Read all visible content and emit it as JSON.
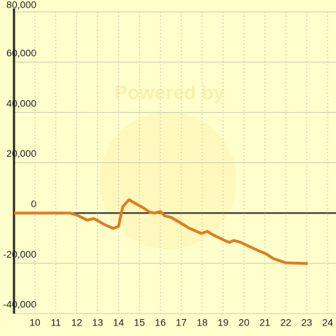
{
  "chart_data": {
    "type": "line",
    "watermark": "Powered by",
    "x": [
      9,
      11.68,
      12.0,
      12.5,
      12.8,
      13.0,
      13.35,
      13.75,
      14.0,
      14.2,
      14.5,
      14.85,
      15.2,
      15.5,
      15.75,
      16.0,
      16.2,
      16.5,
      16.85,
      17.35,
      17.95,
      18.25,
      18.5,
      19.0,
      19.3,
      19.5,
      19.85,
      20.2,
      20.7,
      21.05,
      21.4,
      22.0,
      23.05
    ],
    "series": [
      {
        "color": "#e07b20",
        "values": [
          0,
          0,
          -800,
          -2800,
          -2200,
          -3000,
          -4700,
          -6100,
          -5300,
          2500,
          5300,
          3600,
          2000,
          300,
          0,
          600,
          -1100,
          -1700,
          -3300,
          -5900,
          -8100,
          -7300,
          -8600,
          -10600,
          -11700,
          -10900,
          -11700,
          -13100,
          -15000,
          -16200,
          -18100,
          -19800,
          -20100
        ]
      }
    ],
    "xlim": [
      9,
      24.4
    ],
    "xticks": [
      10,
      11,
      12,
      13,
      14,
      15,
      16,
      17,
      18,
      19,
      20,
      21,
      22,
      23,
      24
    ],
    "ylim": [
      -40000,
      80000
    ],
    "yticks": [
      {
        "value": -40000,
        "label": "-40,000"
      },
      {
        "value": -20000,
        "label": "-20,000"
      },
      0,
      {
        "value": 20000,
        "label": "20,000"
      },
      {
        "value": 40000,
        "label": "40,000"
      },
      {
        "value": 60000,
        "label": "60,000"
      },
      {
        "value": 80000,
        "label": "80,000"
      }
    ],
    "grid": true
  }
}
